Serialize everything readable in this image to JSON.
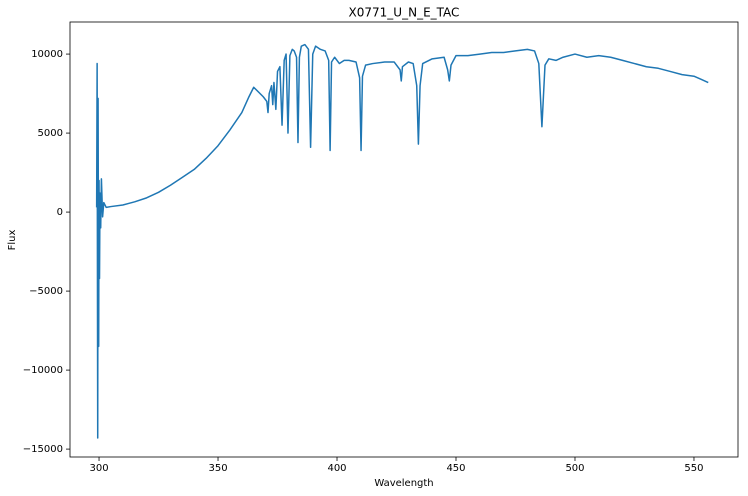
{
  "chart_data": {
    "type": "line",
    "title": "X0771_U_N_E_TAC",
    "x_label": "Wavelength",
    "y_label": "Flux",
    "color": "#1f77b4",
    "x": [
      299.0,
      299.2,
      299.35,
      299.45,
      299.6,
      299.75,
      299.85,
      300.0,
      300.2,
      300.4,
      300.7,
      301.0,
      301.5,
      302,
      303,
      305,
      310,
      315,
      320,
      325,
      330,
      335,
      340,
      345,
      350,
      355,
      360,
      363,
      365,
      367,
      369,
      370.5,
      371,
      371.5,
      372.5,
      373,
      373.5,
      374.3,
      375,
      376,
      376.9,
      377.8,
      378.6,
      379.4,
      380.2,
      381.2,
      382,
      383,
      383.6,
      384.2,
      385,
      386.5,
      388,
      388.9,
      389.8,
      391,
      393,
      395,
      396.5,
      397.1,
      397.7,
      399,
      401,
      403,
      405,
      408,
      409.5,
      410.1,
      410.7,
      412,
      415,
      420,
      424,
      426.5,
      427,
      427.5,
      430,
      432,
      433.5,
      434.2,
      434.9,
      436,
      440,
      445,
      446.5,
      447.2,
      447.9,
      450,
      455,
      460,
      465,
      470,
      475,
      480,
      483,
      484.8,
      486.1,
      487.4,
      489,
      492,
      495,
      500,
      505,
      510,
      515,
      520,
      525,
      530,
      535,
      540,
      545,
      550,
      553,
      556
    ],
    "values": [
      300,
      9400,
      -6000,
      -14300,
      7200,
      -2500,
      -8500,
      2000,
      -4200,
      1200,
      -1000,
      2100,
      -300,
      600,
      300,
      350,
      450,
      650,
      900,
      1250,
      1700,
      2200,
      2700,
      3400,
      4200,
      5200,
      6300,
      7300,
      7900,
      7600,
      7300,
      7000,
      6300,
      7500,
      8000,
      6800,
      8200,
      6500,
      8900,
      9200,
      5500,
      9600,
      10000,
      5000,
      9900,
      10300,
      10200,
      9800,
      4400,
      9800,
      10500,
      10600,
      10300,
      4100,
      10000,
      10500,
      10300,
      10200,
      9600,
      3900,
      9500,
      9800,
      9400,
      9600,
      9600,
      9500,
      8500,
      3900,
      8600,
      9300,
      9400,
      9500,
      9500,
      9000,
      8300,
      9200,
      9500,
      9400,
      8000,
      4300,
      8000,
      9400,
      9700,
      9800,
      9000,
      8300,
      9300,
      9900,
      9900,
      10000,
      10100,
      10100,
      10200,
      10300,
      10200,
      9400,
      5400,
      9300,
      9700,
      9600,
      9800,
      10000,
      9800,
      9900,
      9800,
      9600,
      9400,
      9200,
      9100,
      8900,
      8700,
      8600,
      8400,
      8200
    ],
    "xlim": [
      287.8,
      568.5
    ],
    "ylim": [
      -15500,
      12030
    ],
    "xticks": [
      300,
      350,
      400,
      450,
      500,
      550
    ],
    "yticks": [
      {
        "value": -15000,
        "label": "−15000"
      },
      {
        "value": -10000,
        "label": "−10000"
      },
      {
        "value": -5000,
        "label": "−5000"
      },
      0,
      5000,
      10000
    ]
  }
}
